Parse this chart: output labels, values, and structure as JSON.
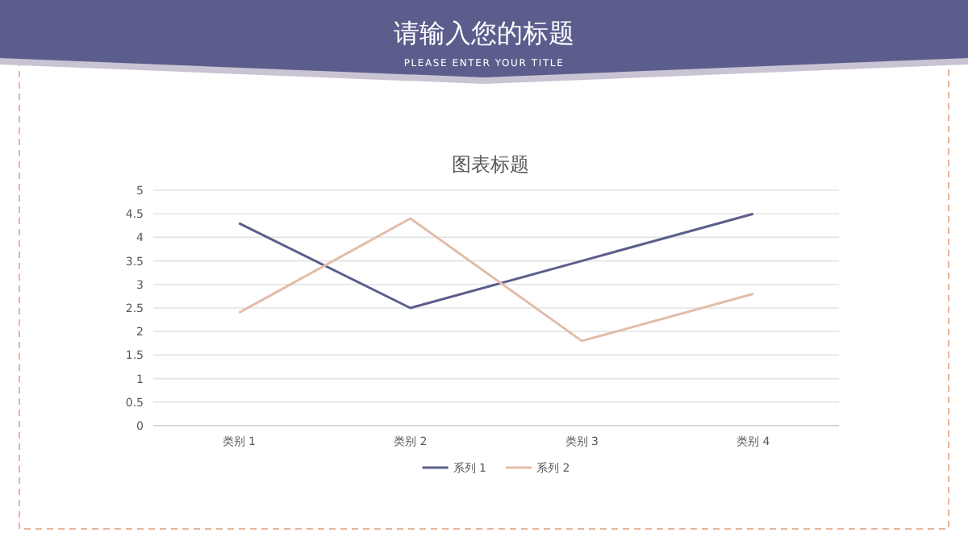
{
  "chart_data": {
    "type": "line",
    "title": "请输入您的标题",
    "subtitle": "PLEASE ENTER YOUR TITLE",
    "annotations": [
      "图表标题"
    ],
    "categories": [
      "类别 1",
      "类别 2",
      "类别 3",
      "类别 4"
    ],
    "series": [
      {
        "name": "系列 1",
        "color": "#5b5e8c",
        "values": [
          4.3,
          2.5,
          3.5,
          4.5
        ]
      },
      {
        "name": "系列 2",
        "color": "#e3bca8",
        "values": [
          2.4,
          4.4,
          1.8,
          2.8
        ]
      }
    ],
    "ylim": [
      0,
      5
    ],
    "yticks": [
      0,
      0.5,
      1,
      1.5,
      2,
      2.5,
      3,
      3.5,
      4,
      4.5,
      5
    ],
    "grid": "y",
    "legend": "bottom",
    "marker": "none",
    "line_style": "solid"
  }
}
